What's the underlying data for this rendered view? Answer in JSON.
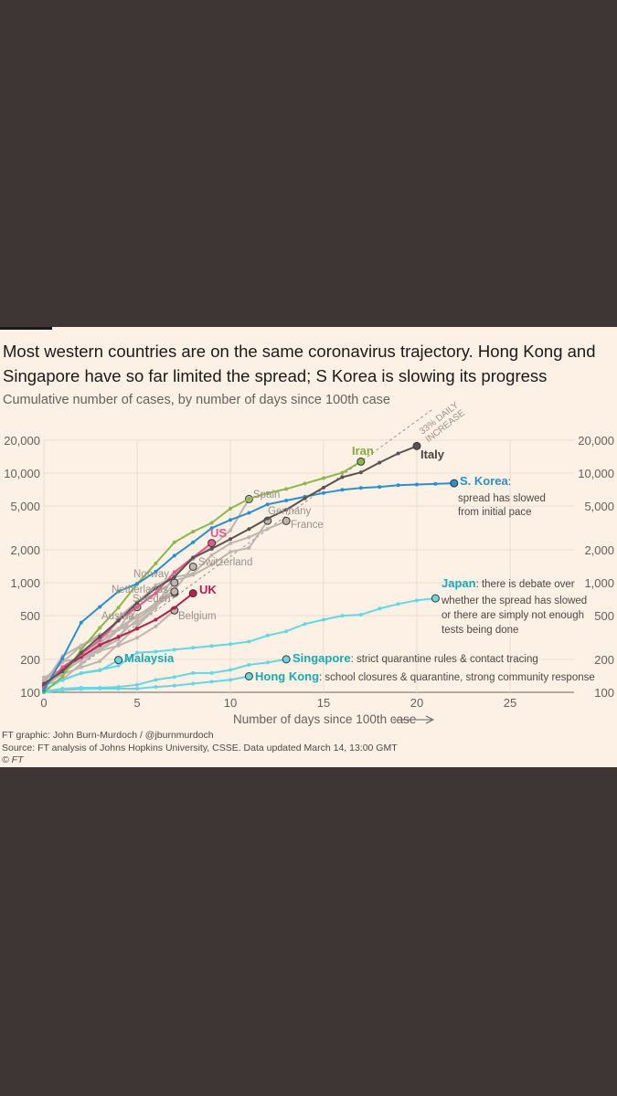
{
  "title": "Most western countries are on the same coronavirus trajectory. Hong Kong and Singapore have so far limited the spread; S Korea is slowing its progress",
  "subtitle": "Cumulative number of cases, by number of days since 100th case",
  "footer": {
    "credit": "FT graphic: John Burn-Murdoch / @jburnmurdoch",
    "source": "Source: FT analysis of Johns Hopkins University, CSSE. Data updated March 14, 13:00 GMT",
    "copyright": "© FT"
  },
  "chart_data": {
    "type": "line",
    "title": "Cumulative number of cases, by number of days since 100th case",
    "xlabel": "Number of days since 100th case",
    "ylabel": "",
    "yscale": "log",
    "xlim": [
      0,
      29
    ],
    "ylim": [
      100,
      20000
    ],
    "xticks": [
      0,
      5,
      10,
      15,
      20,
      25
    ],
    "yticks": [
      100,
      200,
      500,
      1000,
      2000,
      5000,
      10000,
      20000
    ],
    "ytick_labels": [
      "100",
      "200",
      "500",
      "1,000",
      "2,000",
      "5,000",
      "10,000",
      "20,000"
    ],
    "grid": true,
    "reference_line": {
      "label_1": "33% DAILY",
      "label_2": "INCREASE",
      "daily_growth": 0.33
    },
    "series": [
      {
        "name": "Spain",
        "color": "#bdb5ae",
        "values": [
          114,
          151,
          198,
          258,
          374,
          430,
          589,
          1204,
          1639,
          2140,
          3003,
          5800
        ]
      },
      {
        "name": "Germany",
        "color": "#bdb5ae",
        "values": [
          130,
          159,
          196,
          262,
          482,
          670,
          799,
          1040,
          1176,
          1457,
          1908,
          2078,
          3675
        ]
      },
      {
        "name": "France",
        "color": "#bdb5ae",
        "values": [
          130,
          191,
          204,
          285,
          377,
          653,
          949,
          1126,
          1209,
          1784,
          2281,
          2600,
          3100,
          3661
        ]
      },
      {
        "name": "Switzerland",
        "color": "#bdb5ae",
        "values": [
          120,
          214,
          268,
          337,
          374,
          491,
          652,
          858,
          1400
        ]
      },
      {
        "name": "Norway",
        "color": "#bdb5ae",
        "values": [
          113,
          147,
          169,
          192,
          277,
          400,
          598,
          1000
        ]
      },
      {
        "name": "Netherlands",
        "color": "#bdb5ae",
        "values": [
          128,
          188,
          265,
          321,
          382,
          503,
          614,
          804
        ]
      },
      {
        "name": "Sweden",
        "color": "#bdb5ae",
        "values": [
          137,
          161,
          203,
          248,
          326,
          461,
          620,
          830
        ]
      },
      {
        "name": "Austria",
        "color": "#bdb5ae",
        "values": [
          104,
          131,
          182,
          246,
          302,
          600
        ]
      },
      {
        "name": "Belgium",
        "color": "#bdb5ae",
        "values": [
          109,
          169,
          200,
          239,
          267,
          314,
          399,
          559
        ]
      },
      {
        "name": "Malaysia",
        "color": "#66d6e2",
        "values": [
          117,
          129,
          149,
          158,
          197
        ]
      },
      {
        "name": "Hong Kong",
        "color": "#66d6e2",
        "values": [
          100,
          105,
          107,
          108,
          108,
          108,
          112,
          115,
          120,
          125,
          130,
          140
        ],
        "note": ": school closures & quarantine, strong community response"
      },
      {
        "name": "Singapore",
        "color": "#66d6e2",
        "values": [
          102,
          108,
          110,
          110,
          112,
          117,
          130,
          138,
          150,
          150,
          160,
          178,
          187,
          200
        ],
        "note": ": strict quarantine rules & contact tracing"
      },
      {
        "name": "Japan",
        "color": "#66d6e2",
        "values": [
          105,
          130,
          150,
          160,
          175,
          230,
          235,
          245,
          255,
          265,
          275,
          290,
          330,
          360,
          420,
          460,
          500,
          510,
          580,
          640,
          690,
          720
        ],
        "note": ": there is debate over",
        "note_lines": [
          "whether the spread has slowed",
          "or there are simply not enough",
          "tests being done"
        ]
      },
      {
        "name": "UK",
        "color": "#b3214e",
        "values": [
          115,
          165,
          210,
          270,
          320,
          380,
          460,
          590,
          800
        ]
      },
      {
        "name": "US",
        "color": "#e5578a",
        "values": [
          110,
          170,
          220,
          300,
          450,
          600,
          800,
          1250,
          1700,
          2300
        ]
      },
      {
        "name": "Iran",
        "color": "#8ab84a",
        "values": [
          100,
          139,
          245,
          388,
          593,
          978,
          1501,
          2336,
          2922,
          3513,
          4747,
          5823,
          6566,
          7161,
          8042,
          9000,
          10075,
          12729
        ]
      },
      {
        "name": "S. Korea",
        "color": "#2a8fce",
        "values": [
          104,
          204,
          433,
          602,
          833,
          977,
          1261,
          1766,
          2337,
          3150,
          3736,
          4335,
          5186,
          5621,
          6088,
          6593,
          7041,
          7314,
          7478,
          7755,
          7869,
          7979,
          8086
        ],
        "note": ":",
        "note_lines": [
          "spread has slowed",
          "from initial pace"
        ]
      },
      {
        "name": "Italy",
        "color": "#5a5250",
        "values": [
          120,
          155,
          229,
          322,
          453,
          655,
          888,
          1128,
          1694,
          2036,
          2502,
          3089,
          3858,
          4636,
          5883,
          7375,
          9172,
          10149,
          12462,
          15113,
          17660
        ]
      }
    ]
  }
}
